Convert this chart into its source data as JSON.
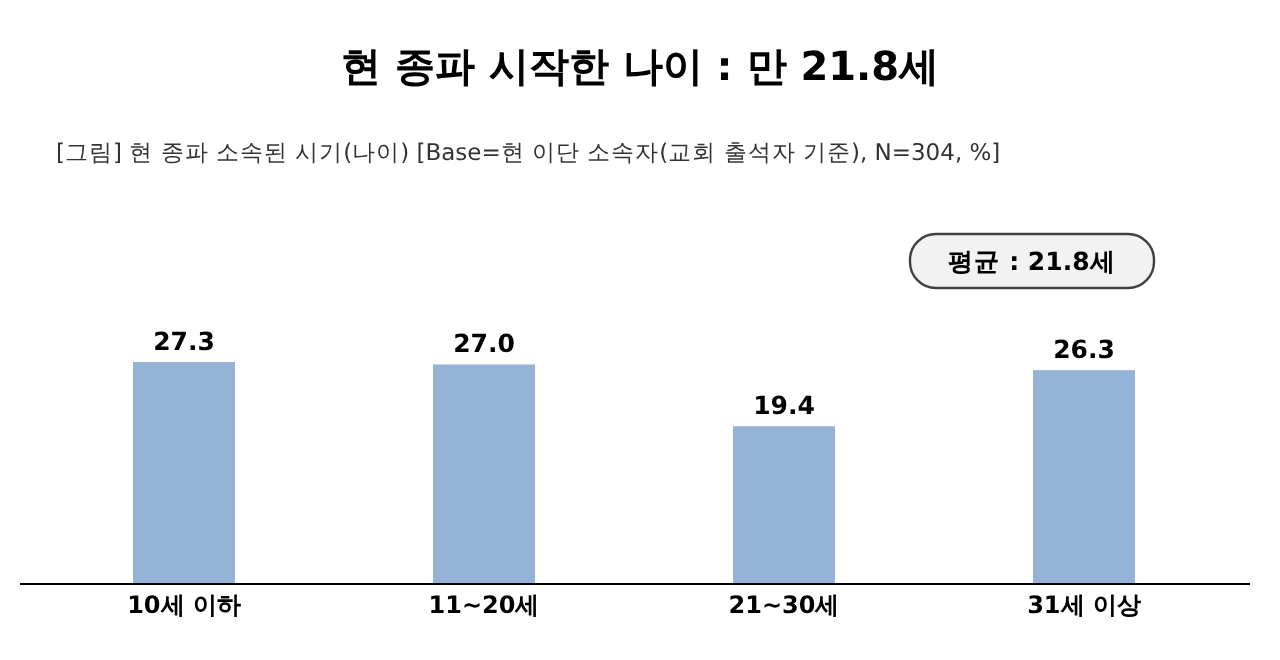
{
  "chart_data": {
    "type": "bar",
    "title": "현 종파 시작한 나이 : 만 21.8세",
    "subtitle": "[그림] 현 종파 소속된 시기(나이) [Base=현 이단 소속자(교회 출석자 기준), N=304, %]",
    "categories": [
      "10세 이하",
      "11~20세",
      "21~30세",
      "31세 이상"
    ],
    "values": [
      27.3,
      27.0,
      19.4,
      26.3
    ],
    "value_labels": [
      "27.3",
      "27.0",
      "19.4",
      "26.3"
    ],
    "color": "#95b3d7",
    "annotations": [
      "평균 : 21.8세"
    ]
  }
}
